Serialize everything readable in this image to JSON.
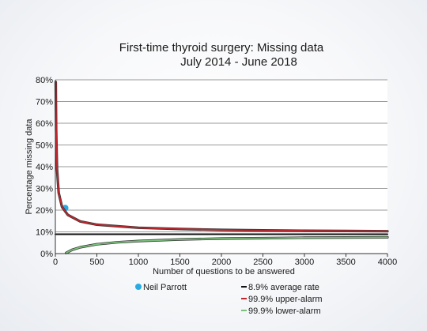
{
  "chart_data": {
    "type": "line",
    "title": "First-time thyroid surgery: Missing data",
    "subtitle": "July 2014 - June 2018",
    "xlabel": "Number of questions to be answered",
    "ylabel": "Percentage missing data",
    "xlim": [
      0,
      4000
    ],
    "ylim": [
      0,
      80
    ],
    "x_ticks": [
      0,
      500,
      1000,
      1500,
      2000,
      2500,
      3000,
      3500,
      4000
    ],
    "y_ticks": [
      0,
      10,
      20,
      30,
      40,
      50,
      60,
      70,
      80
    ],
    "y_tick_labels": [
      "0%",
      "10%",
      "20%",
      "30%",
      "40%",
      "50%",
      "60%",
      "70%",
      "80%"
    ],
    "grid": "horizontal",
    "legend_position": "bottom",
    "average_rate": 8.9,
    "series": [
      {
        "name": "Neil Parrott",
        "kind": "point",
        "color": "#29abe2",
        "x": [
          120
        ],
        "y": [
          21
        ]
      },
      {
        "name": "8.9% average rate",
        "kind": "line",
        "color": "#111111",
        "x": [
          0,
          4000
        ],
        "y": [
          8.9,
          8.9
        ]
      },
      {
        "name": "99.9% upper-alarm",
        "kind": "line",
        "color": "#c0272d",
        "x": [
          5,
          10,
          20,
          40,
          80,
          150,
          300,
          500,
          1000,
          1500,
          2000,
          2500,
          3000,
          3500,
          4000
        ],
        "y": [
          79,
          57,
          39,
          28,
          21.5,
          17.8,
          14.8,
          13.3,
          11.9,
          11.3,
          10.9,
          10.7,
          10.5,
          10.4,
          10.3
        ]
      },
      {
        "name": "99.9% lower-alarm",
        "kind": "line",
        "color": "#7cbf7c",
        "x": [
          130,
          200,
          300,
          500,
          750,
          1000,
          1500,
          2000,
          2500,
          3000,
          3500,
          4000
        ],
        "y": [
          0.3,
          1.7,
          2.9,
          4.3,
          5.2,
          5.8,
          6.5,
          6.9,
          7.1,
          7.3,
          7.4,
          7.5
        ]
      }
    ]
  },
  "legend": {
    "left": [
      {
        "label": "Neil Parrott",
        "color": "#29abe2",
        "marker": "dot"
      }
    ],
    "right": [
      {
        "label": "8.9% average rate",
        "color": "#111111",
        "marker": "line"
      },
      {
        "label": "99.9% upper-alarm",
        "color": "#c0272d",
        "marker": "line"
      },
      {
        "label": "99.9% lower-alarm",
        "color": "#7cbf7c",
        "marker": "line"
      }
    ]
  }
}
